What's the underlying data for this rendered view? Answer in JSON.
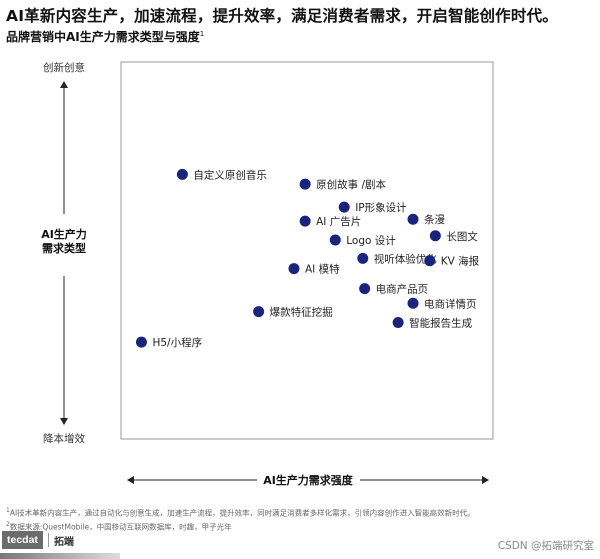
{
  "headline": "AI革新内容生产，加速流程，提升效率，满足消费者需求，开启智能创作时代。",
  "subtitle": {
    "text": "品牌营销中AI生产力需求类型与强度",
    "sup": "1"
  },
  "chart_data": {
    "type": "scatter",
    "title": "",
    "xlabel": "AI生产力需求强度",
    "ylabel": "AI生产力\n需求类型",
    "y_top_label": "创新创意",
    "y_bottom_label": "降本增效",
    "xlim": [
      0,
      100
    ],
    "ylim": [
      0,
      100
    ],
    "grid": false,
    "marker_color": "#1a237e",
    "points": [
      {
        "label": "自定义原创音乐",
        "x": 16.5,
        "y": 70.2
      },
      {
        "label": "原创故事 /剧本",
        "x": 49.5,
        "y": 67.6
      },
      {
        "label": "IP形象设计",
        "x": 60.0,
        "y": 61.5
      },
      {
        "label": "条漫",
        "x": 78.5,
        "y": 58.3
      },
      {
        "label": "AI 广告片",
        "x": 49.5,
        "y": 57.8
      },
      {
        "label": "长图文",
        "x": 84.5,
        "y": 53.9
      },
      {
        "label": "Logo  设计",
        "x": 57.6,
        "y": 52.8
      },
      {
        "label": "视听体验优化",
        "x": 65.0,
        "y": 47.9
      },
      {
        "label": "KV 海报",
        "x": 83.0,
        "y": 47.3
      },
      {
        "label": "AI 模特",
        "x": 46.5,
        "y": 45.2
      },
      {
        "label": "电商产品页",
        "x": 65.5,
        "y": 39.9
      },
      {
        "label": "电商详情页",
        "x": 78.5,
        "y": 36.0
      },
      {
        "label": "爆款特征挖掘",
        "x": 37.0,
        "y": 33.8
      },
      {
        "label": "智能报告生成",
        "x": 74.5,
        "y": 30.9
      },
      {
        "label": "H5/小程序",
        "x": 5.5,
        "y": 25.7
      }
    ]
  },
  "footnotes": [
    {
      "sup": "1",
      "text": "AI技术革新内容生产，通过自动化与创意生成，加速生产流程，提升效率，同时满足消费者多样化需求，引领内容创作进入智能高效新时代。"
    },
    {
      "sup": "2",
      "text": "数据来源:QuestMobile，中国移动互联网数据库，时趣，甲子光年"
    }
  ],
  "brand": {
    "logo": "tecdat",
    "name": "拓端"
  },
  "watermark": "CSDN @拓端研究室"
}
